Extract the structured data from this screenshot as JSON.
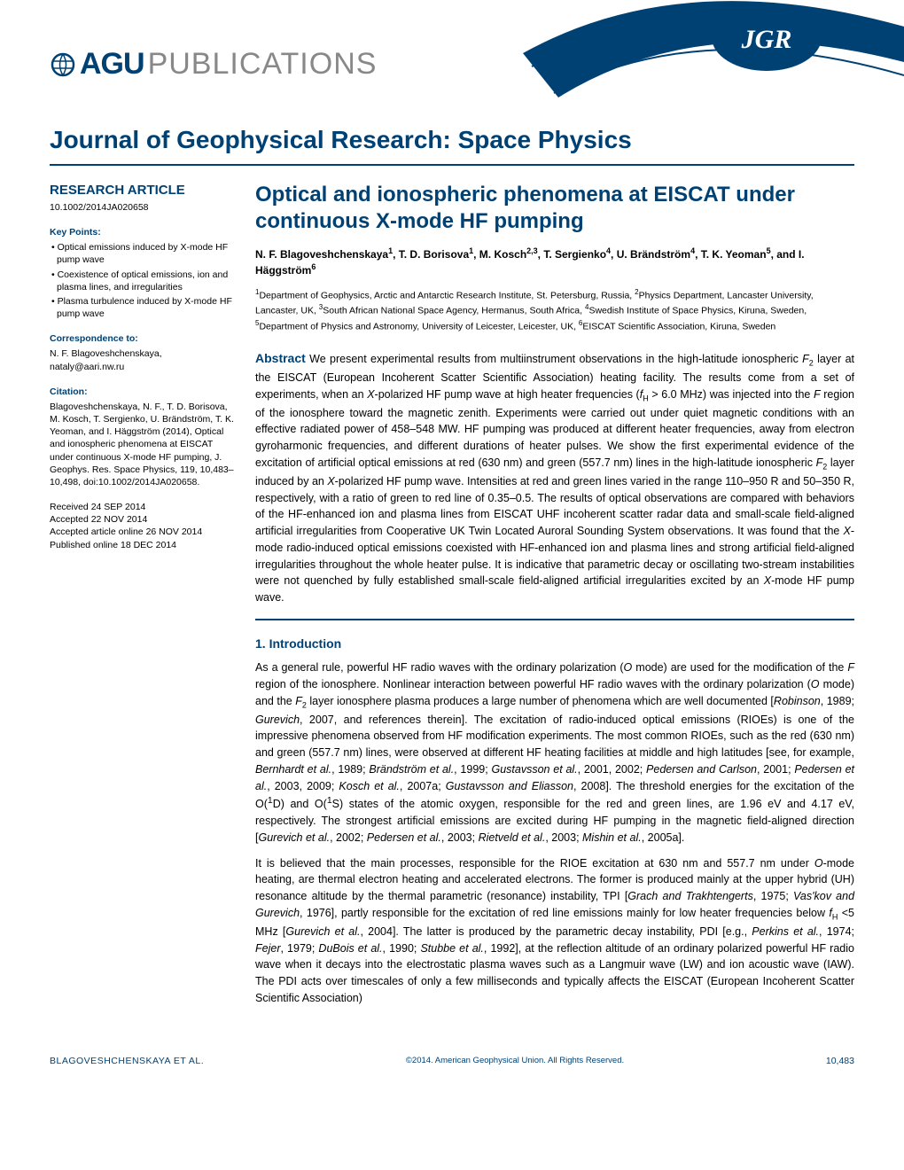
{
  "publisher": {
    "mark": "AGU",
    "word": "PUBLICATIONS",
    "badge": "JGR"
  },
  "journal": "Journal of Geophysical Research: Space Physics",
  "article_type": "RESEARCH ARTICLE",
  "doi": "10.1002/2014JA020658",
  "key_points_head": "Key Points:",
  "key_points": [
    "Optical emissions induced by X-mode HF pump wave",
    "Coexistence of optical emissions, ion and plasma lines, and irregularities",
    "Plasma turbulence induced by X-mode HF pump wave"
  ],
  "correspondence_head": "Correspondence to:",
  "correspondence": "N. F. Blagoveshchenskaya,\nnataly@aari.nw.ru",
  "citation_head": "Citation:",
  "citation": "Blagoveshchenskaya, N. F., T. D. Borisova, M. Kosch, T. Sergienko, U. Brändström, T. K. Yeoman, and I. Häggström (2014), Optical and ionospheric phenomena at EISCAT under continuous X-mode HF pumping, J. Geophys. Res. Space Physics, 119, 10,483–10,498, doi:10.1002/2014JA020658.",
  "dates": "Received 24 SEP 2014\nAccepted 22 NOV 2014\nAccepted article online 26 NOV 2014\nPublished online 18 DEC 2014",
  "title": "Optical and ionospheric phenomena at EISCAT under continuous X-mode HF pumping",
  "authors_html": "N. F. Blagoveshchenskaya<sup>1</sup>, T. D. Borisova<sup>1</sup>, M. Kosch<sup>2,3</sup>, T. Sergienko<sup>4</sup>, U. Brändström<sup>4</sup>, T. K. Yeoman<sup>5</sup>, and I. Häggström<sup>6</sup>",
  "affiliations_html": "<sup>1</sup>Department of Geophysics, Arctic and Antarctic Research Institute, St. Petersburg, Russia, <sup>2</sup>Physics Department, Lancaster University, Lancaster, UK, <sup>3</sup>South African National Space Agency, Hermanus, South Africa, <sup>4</sup>Swedish Institute of Space Physics, Kiruna, Sweden, <sup>5</sup>Department of Physics and Astronomy, University of Leicester, Leicester, UK, <sup>6</sup>EISCAT Scientific Association, Kiruna, Sweden",
  "abstract_label": "Abstract",
  "abstract_html": "We present experimental results from multiinstrument observations in the high-latitude ionospheric <span class=\"ital\">F</span><sub>2</sub> layer at the EISCAT (European Incoherent Scatter Scientific Association) heating facility. The results come from a set of experiments, when an <span class=\"ital\">X</span>-polarized HF pump wave at high heater frequencies (<span class=\"ital\">f</span><sub>H</sub> > 6.0 MHz) was injected into the <span class=\"ital\">F</span> region of the ionosphere toward the magnetic zenith. Experiments were carried out under quiet magnetic conditions with an effective radiated power of 458–548 MW. HF pumping was produced at different heater frequencies, away from electron gyroharmonic frequencies, and different durations of heater pulses. We show the first experimental evidence of the excitation of artificial optical emissions at red (630 nm) and green (557.7 nm) lines in the high-latitude ionospheric <span class=\"ital\">F</span><sub>2</sub> layer induced by an <span class=\"ital\">X</span>-polarized HF pump wave. Intensities at red and green lines varied in the range 110–950 R and 50–350 R, respectively, with a ratio of green to red line of 0.35–0.5. The results of optical observations are compared with behaviors of the HF-enhanced ion and plasma lines from EISCAT UHF incoherent scatter radar data and small-scale field-aligned artificial irregularities from Cooperative UK Twin Located Auroral Sounding System observations. It was found that the <span class=\"ital\">X</span>-mode radio-induced optical emissions coexisted with HF-enhanced ion and plasma lines and strong artificial field-aligned irregularities throughout the whole heater pulse. It is indicative that parametric decay or oscillating two-stream instabilities were not quenched by fully established small-scale field-aligned artificial irregularities excited by an <span class=\"ital\">X</span>-mode HF pump wave.",
  "section1_head": "1. Introduction",
  "para1_html": "As a general rule, powerful HF radio waves with the ordinary polarization (<span class=\"ital\">O</span> mode) are used for the modification of the <span class=\"ital\">F</span> region of the ionosphere. Nonlinear interaction between powerful HF radio waves with the ordinary polarization (<span class=\"ital\">O</span> mode) and the <span class=\"ital\">F</span><sub>2</sub> layer ionosphere plasma produces a large number of phenomena which are well documented [<span class=\"ital\">Robinson</span>, 1989; <span class=\"ital\">Gurevich</span>, 2007, and references therein]. The excitation of radio-induced optical emissions (RIOEs) is one of the impressive phenomena observed from HF modification experiments. The most common RIOEs, such as the red (630 nm) and green (557.7 nm) lines, were observed at different HF heating facilities at middle and high latitudes [see, for example, <span class=\"ital\">Bernhardt et al.</span>, 1989; <span class=\"ital\">Brändström et al.</span>, 1999; <span class=\"ital\">Gustavsson et al.</span>, 2001, 2002; <span class=\"ital\">Pedersen and Carlson</span>, 2001; <span class=\"ital\">Pedersen et al.</span>, 2003, 2009; <span class=\"ital\">Kosch et al.</span>, 2007a; <span class=\"ital\">Gustavsson and Eliasson</span>, 2008]. The threshold energies for the excitation of the O(<sup>1</sup>D) and O(<sup>1</sup>S) states of the atomic oxygen, responsible for the red and green lines, are 1.96 eV and 4.17 eV, respectively. The strongest artificial emissions are excited during HF pumping in the magnetic field-aligned direction [<span class=\"ital\">Gurevich et al.</span>, 2002; <span class=\"ital\">Pedersen et al.</span>, 2003; <span class=\"ital\">Rietveld et al.</span>, 2003; <span class=\"ital\">Mishin et al.</span>, 2005a].",
  "para2_html": "It is believed that the main processes, responsible for the RIOE excitation at 630 nm and 557.7 nm under <span class=\"ital\">O</span>-mode heating, are thermal electron heating and accelerated electrons. The former is produced mainly at the upper hybrid (UH) resonance altitude by the thermal parametric (resonance) instability, TPI [<span class=\"ital\">Grach and Trakhtengerts</span>, 1975; <span class=\"ital\">Vas'kov and Gurevich</span>, 1976], partly responsible for the excitation of red line emissions mainly for low heater frequencies below <span class=\"ital\">f</span><sub>H</sub> &lt;5 MHz [<span class=\"ital\">Gurevich et al.</span>, 2004]. The latter is produced by the parametric decay instability, PDI [e.g., <span class=\"ital\">Perkins et al.</span>, 1974; <span class=\"ital\">Fejer</span>, 1979; <span class=\"ital\">DuBois et al.</span>, 1990; <span class=\"ital\">Stubbe et al.</span>, 1992], at the reflection altitude of an ordinary polarized powerful HF radio wave when it decays into the electrostatic plasma waves such as a Langmuir wave (LW) and ion acoustic wave (IAW). The PDI acts over timescales of only a few milliseconds and typically affects the EISCAT (European Incoherent Scatter Scientific Association)",
  "footer": {
    "left": "BLAGOVESHCHENSKAYA ET AL.",
    "center": "©2014. American Geophysical Union. All Rights Reserved.",
    "right": "10,483"
  },
  "colors": {
    "brand": "#004174",
    "gray": "#6a6a6a"
  }
}
